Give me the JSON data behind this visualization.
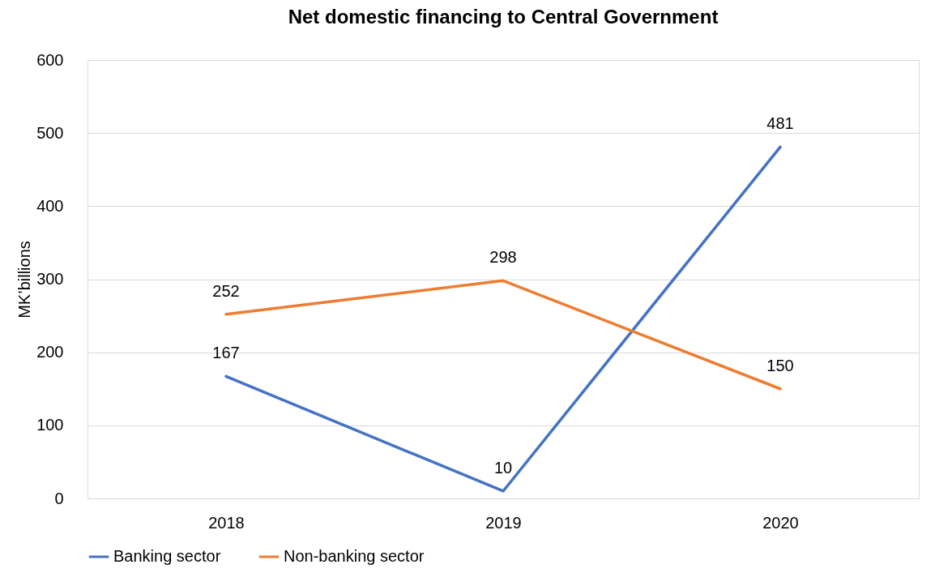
{
  "chart_data": {
    "type": "line",
    "title": "Net domestic financing to Central Government",
    "ylabel": "MK’billions",
    "categories": [
      "2018",
      "2019",
      "2020"
    ],
    "series": [
      {
        "name": "Banking sector",
        "color": "#4472c4",
        "values": [
          167,
          10,
          481
        ]
      },
      {
        "name": "Non-banking sector",
        "color": "#ed7d31",
        "values": [
          252,
          298,
          150
        ]
      }
    ],
    "ylim": [
      0,
      600
    ],
    "yticks": [
      0,
      100,
      200,
      300,
      400,
      500,
      600
    ],
    "grid": "y",
    "legend": "bottom",
    "data_labels": true
  }
}
